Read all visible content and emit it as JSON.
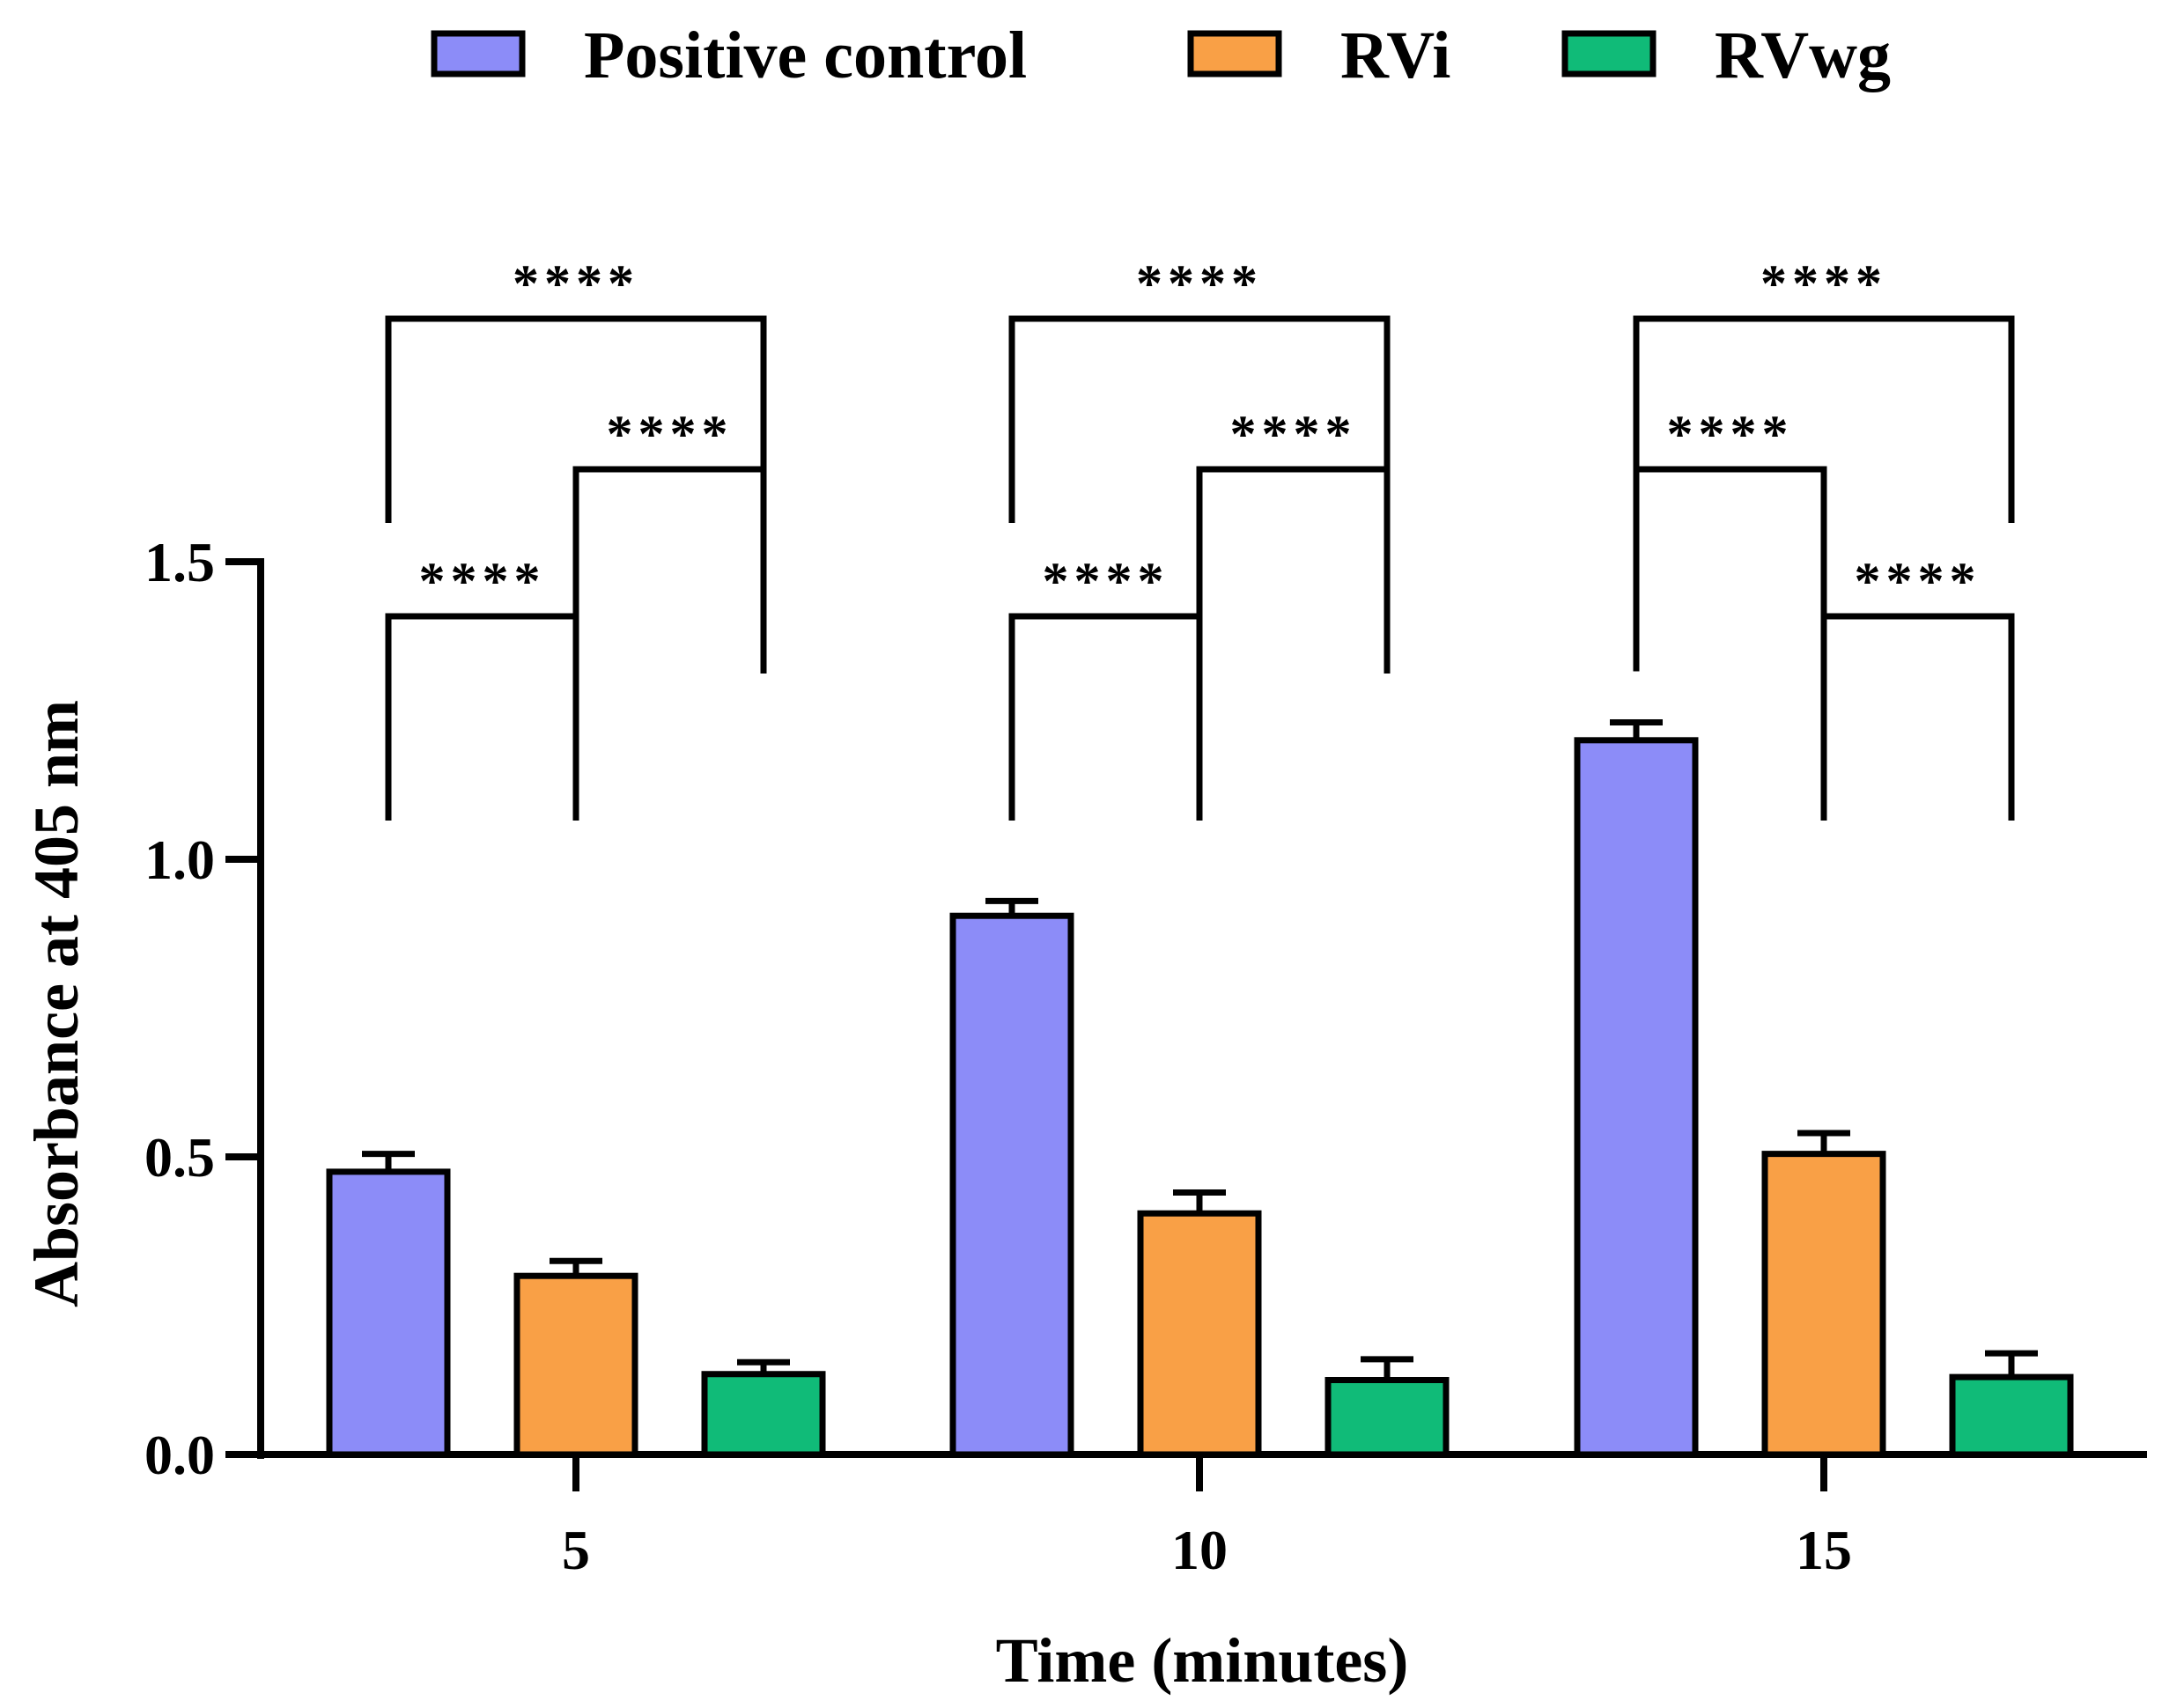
{
  "chart_data": {
    "type": "bar",
    "title": "",
    "xlabel": "Time (minutes)",
    "ylabel": "Absorbance at 405 nm",
    "categories": [
      "5",
      "10",
      "15"
    ],
    "ylim": [
      0,
      1.5
    ],
    "yticks": [
      "0.0",
      "0.5",
      "1.0",
      "1.5"
    ],
    "legend_position": "top",
    "series": [
      {
        "name": "Positive control",
        "color": "#8c8cf8",
        "values": [
          0.475,
          0.905,
          1.2
        ],
        "errors": [
          0.03,
          0.025,
          0.03
        ]
      },
      {
        "name": "RVi",
        "color": "#f9a046",
        "values": [
          0.3,
          0.405,
          0.505
        ],
        "errors": [
          0.025,
          0.035,
          0.035
        ]
      },
      {
        "name": "RVwg",
        "color": "#10bb78",
        "values": [
          0.135,
          0.125,
          0.13
        ],
        "errors": [
          0.02,
          0.035,
          0.04
        ]
      }
    ],
    "significance": [
      {
        "category": 0,
        "from": 0,
        "to": 1,
        "label": "****"
      },
      {
        "category": 0,
        "from": 1,
        "to": 2,
        "label": "****"
      },
      {
        "category": 0,
        "from": 0,
        "to": 2,
        "label": "****"
      },
      {
        "category": 1,
        "from": 0,
        "to": 1,
        "label": "****"
      },
      {
        "category": 1,
        "from": 1,
        "to": 2,
        "label": "****"
      },
      {
        "category": 1,
        "from": 0,
        "to": 2,
        "label": "****"
      },
      {
        "category": 2,
        "from": 1,
        "to": 2,
        "label": "****"
      },
      {
        "category": 2,
        "from": 0,
        "to": 1,
        "label": "****"
      },
      {
        "category": 2,
        "from": 0,
        "to": 2,
        "label": "****"
      }
    ]
  }
}
